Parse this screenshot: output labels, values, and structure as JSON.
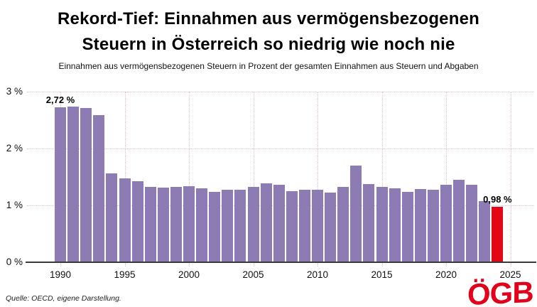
{
  "header": {
    "title_line1": "Rekord-Tief: Einnahmen aus vermögensbezogenen",
    "title_line2": "Steuern in Österreich so niedrig wie noch nie",
    "subtitle": "Einnahmen aus vermögensbezogenen Steuern in Prozent der gesamten Einnahmen aus Steuern und Abgaben"
  },
  "footer": {
    "source": "Quelle: OECD, eigene Darstellung.",
    "logo_text": "ÖGB"
  },
  "colors": {
    "bar": "#8d7bb4",
    "highlight_bar": "#e30615",
    "gridline": "#dcc3c9",
    "axis_line": "#3a3a3a",
    "logo_red": "#e3001b",
    "text": "#000000"
  },
  "chart_data": {
    "type": "bar",
    "title": "Rekord-Tief: Einnahmen aus vermögensbezogenen Steuern in Österreich so niedrig wie noch nie",
    "subtitle": "Einnahmen aus vermögensbezogenen Steuern in Prozent der gesamten Einnahmen aus Steuern und Abgaben",
    "xlabel": "",
    "ylabel": "Prozent der gesamten Einnahmen aus Steuern und Abgaben",
    "grid": "dotted",
    "legend": "none",
    "ylim": [
      0,
      3
    ],
    "x": [
      1990,
      1991,
      1992,
      1993,
      1994,
      1995,
      1996,
      1997,
      1998,
      1999,
      2000,
      2001,
      2002,
      2003,
      2004,
      2005,
      2006,
      2007,
      2008,
      2009,
      2010,
      2011,
      2012,
      2013,
      2014,
      2015,
      2016,
      2017,
      2018,
      2019,
      2020,
      2021,
      2022,
      2023,
      2024
    ],
    "values": [
      2.72,
      2.74,
      2.71,
      2.59,
      1.56,
      1.48,
      1.43,
      1.32,
      1.31,
      1.33,
      1.34,
      1.3,
      1.24,
      1.27,
      1.28,
      1.32,
      1.39,
      1.36,
      1.25,
      1.28,
      1.28,
      1.23,
      1.32,
      1.7,
      1.38,
      1.32,
      1.3,
      1.24,
      1.29,
      1.27,
      1.36,
      1.45,
      1.36,
      1.07,
      0.98
    ],
    "y_ticks": [
      {
        "value": 0,
        "label": "0 %"
      },
      {
        "value": 1,
        "label": "1 %"
      },
      {
        "value": 2,
        "label": "2 %"
      },
      {
        "value": 3,
        "label": "3 %"
      }
    ],
    "x_tick_years": [
      1990,
      1995,
      2000,
      2005,
      2010,
      2015,
      2020,
      2025
    ],
    "highlight_year": 2024,
    "annotations": [
      {
        "year": 1990,
        "label": "2,72 %"
      },
      {
        "year": 2024,
        "label": "0,98 %"
      }
    ]
  }
}
